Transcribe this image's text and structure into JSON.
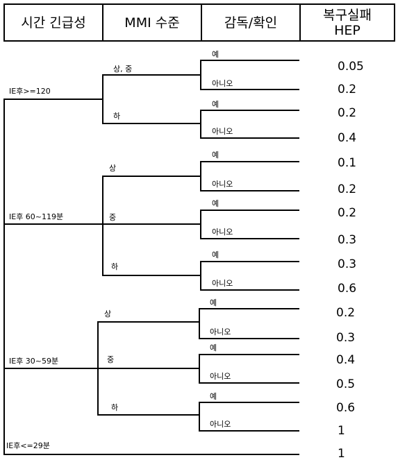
{
  "header": {
    "col1": "시간 긴급성",
    "col2": "MMI 수준",
    "col3": "감독/확인",
    "col4_line1": "복구실패",
    "col4_line2": "HEP"
  },
  "time_branches": [
    {
      "label": "IE후>=120",
      "mmi": [
        {
          "label": "상, 중",
          "hep_yes": "0.05",
          "hep_no": "0.2"
        },
        {
          "label": "하",
          "hep_yes": "0.2",
          "hep_no": "0.4"
        }
      ]
    },
    {
      "label": "IE후 60~119분",
      "mmi": [
        {
          "label": "상",
          "hep_yes": "0.1",
          "hep_no": "0.2"
        },
        {
          "label": "중",
          "hep_yes": "0.2",
          "hep_no": "0.3"
        },
        {
          "label": "하",
          "hep_yes": "0.3",
          "hep_no": "0.6"
        }
      ]
    },
    {
      "label": "IE후 30~59분",
      "mmi": [
        {
          "label": "상",
          "hep_yes": "0.2",
          "hep_no": "0.3"
        },
        {
          "label": "중",
          "hep_yes": "0.4",
          "hep_no": "0.5"
        },
        {
          "label": "하",
          "hep_yes": "0.6",
          "hep_no": "1"
        }
      ]
    },
    {
      "label": "IE후<=29분",
      "hep": "1"
    }
  ],
  "supervision": {
    "yes": "예",
    "no": "아니오"
  }
}
